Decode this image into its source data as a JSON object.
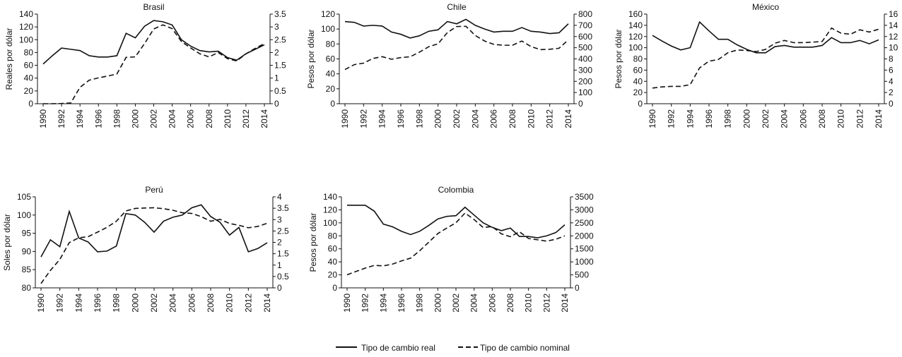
{
  "chart_data": [
    {
      "type": "line",
      "title": "Brasil",
      "ylabel": "Reales por dólar",
      "ylim": [
        0,
        140
      ],
      "yticks": [
        0,
        20,
        40,
        60,
        80,
        100,
        120,
        140
      ],
      "y2lim": [
        0,
        3.5
      ],
      "y2ticks": [
        "0",
        "0.5",
        "1",
        "1.5",
        "2",
        "2.5",
        "3",
        "3.5"
      ],
      "x": [
        1990,
        1991,
        1992,
        1993,
        1994,
        1995,
        1996,
        1997,
        1998,
        1999,
        2000,
        2001,
        2002,
        2003,
        2004,
        2005,
        2006,
        2007,
        2008,
        2009,
        2010,
        2011,
        2012,
        2013,
        2014
      ],
      "real": [
        62,
        75,
        87,
        85,
        83,
        75,
        73,
        73,
        75,
        110,
        103,
        121,
        130,
        128,
        123,
        100,
        90,
        83,
        81,
        82,
        72,
        68,
        78,
        85,
        92
      ],
      "nominal": [
        0,
        0,
        0.01,
        0.03,
        0.64,
        0.92,
        1.01,
        1.08,
        1.16,
        1.81,
        1.83,
        2.35,
        2.92,
        3.08,
        2.93,
        2.43,
        2.18,
        1.95,
        1.83,
        2.0,
        1.76,
        1.67,
        1.95,
        2.16,
        2.35
      ]
    },
    {
      "type": "line",
      "title": "Chile",
      "ylabel": "Pesos por dólar",
      "ylim": [
        0,
        120
      ],
      "yticks": [
        0,
        20,
        40,
        60,
        80,
        100,
        120
      ],
      "y2lim": [
        0,
        800
      ],
      "y2ticks": [
        "0",
        "100",
        "200",
        "300",
        "400",
        "500",
        "600",
        "700",
        "800"
      ],
      "x": [
        1990,
        1991,
        1992,
        1993,
        1994,
        1995,
        1996,
        1997,
        1998,
        1999,
        2000,
        2001,
        2002,
        2003,
        2004,
        2005,
        2006,
        2007,
        2008,
        2009,
        2010,
        2011,
        2012,
        2013,
        2014
      ],
      "real": [
        110,
        109,
        104,
        105,
        104,
        96,
        93,
        88,
        91,
        97,
        99,
        110,
        107,
        113,
        105,
        100,
        96,
        97,
        97,
        102,
        97,
        96,
        94,
        95,
        107
      ],
      "nominal": [
        305,
        349,
        362,
        404,
        420,
        397,
        412,
        419,
        460,
        509,
        535,
        635,
        689,
        691,
        609,
        560,
        530,
        522,
        522,
        560,
        510,
        483,
        486,
        495,
        570
      ]
    },
    {
      "type": "line",
      "title": "México",
      "ylabel": "Pesos por dólar",
      "ylim": [
        0,
        160
      ],
      "yticks": [
        0,
        20,
        40,
        60,
        80,
        100,
        120,
        140,
        160
      ],
      "y2lim": [
        0,
        16
      ],
      "y2ticks": [
        "0",
        "2",
        "4",
        "6",
        "8",
        "10",
        "12",
        "14",
        "16"
      ],
      "x": [
        1990,
        1991,
        1992,
        1993,
        1994,
        1995,
        1996,
        1997,
        1998,
        1999,
        2000,
        2001,
        2002,
        2003,
        2004,
        2005,
        2006,
        2007,
        2008,
        2009,
        2010,
        2011,
        2012,
        2013,
        2014
      ],
      "real": [
        122,
        112,
        103,
        96,
        100,
        146,
        130,
        115,
        115,
        105,
        97,
        91,
        91,
        102,
        104,
        101,
        101,
        101,
        104,
        118,
        109,
        109,
        113,
        107,
        114
      ],
      "nominal": [
        2.8,
        3.0,
        3.1,
        3.1,
        3.4,
        6.4,
        7.6,
        7.9,
        9.1,
        9.6,
        9.5,
        9.3,
        9.7,
        10.8,
        11.3,
        10.9,
        10.9,
        11.0,
        11.1,
        13.5,
        12.6,
        12.4,
        13.2,
        12.8,
        13.3
      ]
    },
    {
      "type": "line",
      "title": "Perú",
      "ylabel": "Soles por dólar",
      "ylim": [
        80,
        105
      ],
      "yticks": [
        80,
        85,
        90,
        95,
        100,
        105
      ],
      "y2lim": [
        0,
        4
      ],
      "y2ticks": [
        "0",
        "0.5",
        "1",
        "1.5",
        "2",
        "2.5",
        "3",
        "3.5",
        "4"
      ],
      "x": [
        1990,
        1991,
        1992,
        1993,
        1994,
        1995,
        1996,
        1997,
        1998,
        1999,
        2000,
        2001,
        2002,
        2003,
        2004,
        2005,
        2006,
        2007,
        2008,
        2009,
        2010,
        2011,
        2012,
        2013,
        2014
      ],
      "real": [
        88.5,
        93.2,
        91.3,
        101,
        93.7,
        92.6,
        89.9,
        90.1,
        91.5,
        100.4,
        100,
        98,
        95.3,
        98.3,
        99.4,
        100,
        102,
        102.8,
        99.6,
        98,
        94.5,
        96.6,
        89.9,
        90.8,
        92.4
      ],
      "nominal": [
        0.19,
        0.77,
        1.25,
        1.99,
        2.2,
        2.25,
        2.45,
        2.66,
        2.93,
        3.38,
        3.49,
        3.51,
        3.52,
        3.48,
        3.41,
        3.3,
        3.27,
        3.13,
        2.93,
        3.01,
        2.83,
        2.75,
        2.64,
        2.7,
        2.84
      ]
    },
    {
      "type": "line",
      "title": "Colombia",
      "ylabel": "Pesos por dólar",
      "ylim": [
        0,
        140
      ],
      "yticks": [
        0,
        20,
        40,
        60,
        80,
        100,
        120,
        140
      ],
      "y2lim": [
        0,
        3500
      ],
      "y2ticks": [
        "0",
        "500",
        "1000",
        "1500",
        "2000",
        "2500",
        "3000",
        "3500"
      ],
      "x": [
        1990,
        1991,
        1992,
        1993,
        1994,
        1995,
        1996,
        1997,
        1998,
        1999,
        2000,
        2001,
        2002,
        2003,
        2004,
        2005,
        2006,
        2007,
        2008,
        2009,
        2010,
        2011,
        2012,
        2013,
        2014
      ],
      "real": [
        127,
        127,
        127,
        118,
        98,
        94,
        87,
        82,
        87,
        96,
        106,
        110,
        111,
        124,
        112,
        100,
        93,
        88,
        92,
        79,
        79,
        77,
        80,
        85,
        97
      ],
      "nominal": [
        502,
        633,
        759,
        863,
        845,
        913,
        1037,
        1141,
        1426,
        1756,
        2088,
        2300,
        2504,
        2878,
        2628,
        2321,
        2358,
        2078,
        1967,
        2158,
        1898,
        1848,
        1797,
        1869,
        2001
      ]
    }
  ],
  "xticks": [
    "1990",
    "1992",
    "1994",
    "1996",
    "1998",
    "2000",
    "2002",
    "2004",
    "2006",
    "2008",
    "2010",
    "2012",
    "2014"
  ],
  "legend": {
    "real": "Tipo de cambio real",
    "nominal": "Tipo de cambio nominal"
  }
}
